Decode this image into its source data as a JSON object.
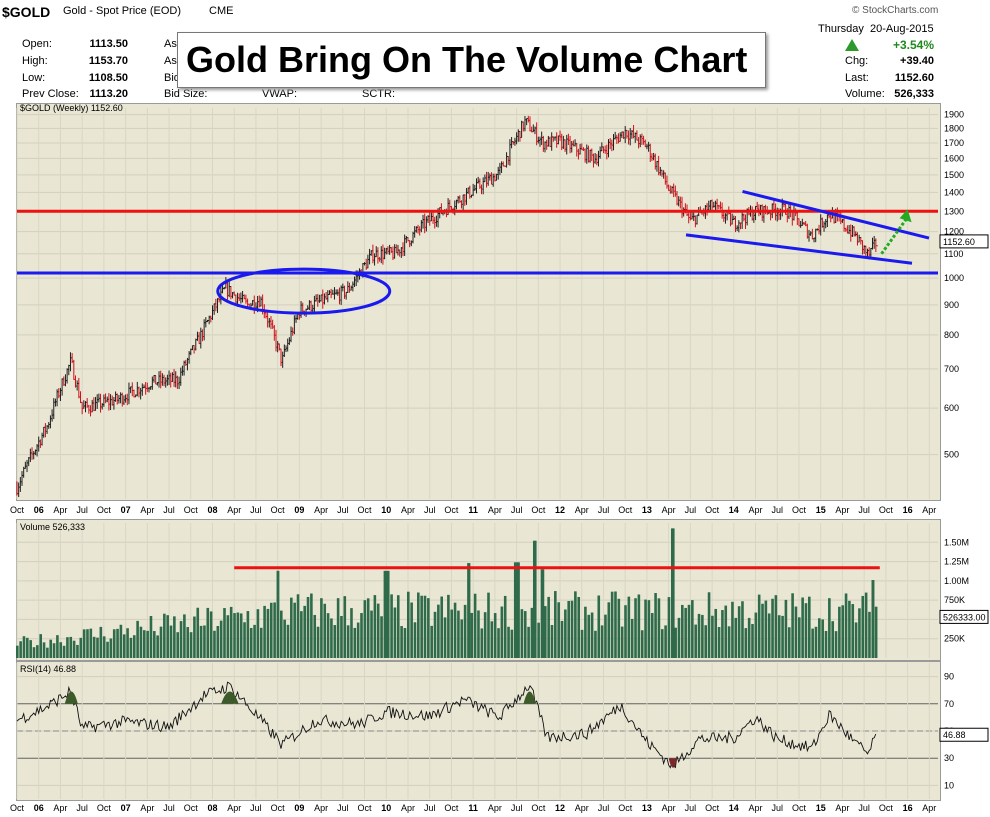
{
  "header": {
    "symbol": "$GOLD",
    "name": "Gold - Spot Price (EOD)",
    "exchange": "CME",
    "copyright": "© StockCharts.com",
    "day": "Thursday",
    "date": "20-Aug-2015",
    "pct_change": "+3.54%",
    "open_label": "Open:",
    "open": "1113.50",
    "high_label": "High:",
    "high": "1153.70",
    "low_label": "Low:",
    "low": "1108.50",
    "prev_label": "Prev Close:",
    "prev": "1113.20",
    "ask_label": "As",
    "bid_label": "Bid",
    "bidsize_label": "Bid Size:",
    "vwap_label": "VWAP:",
    "sctr_label": "SCTR:",
    "chg_label": "Chg:",
    "chg": "+39.40",
    "last_label": "Last:",
    "last": "1152.60",
    "volume_label": "Volume:",
    "volume": "526,333"
  },
  "banner_title": "Gold Bring On The Volume Chart",
  "colors": {
    "panel_bg": "#e9e7d4",
    "up_bar": "#1e1e1e",
    "down_bar": "#d0101a",
    "volume_bar": "#2f6b4a",
    "support_line": "#1a1aee",
    "resistance_line": "#ee1111",
    "arrow": "#22aa22",
    "rsi_fill": "#3d5a2a"
  },
  "chart_data": [
    {
      "type": "candlestick",
      "title": "$GOLD (Weekly) 1152.60",
      "scale": "log",
      "ylim": [
        420,
        1950
      ],
      "y_ticks": [
        500,
        600,
        700,
        800,
        900,
        1000,
        1100,
        1200,
        1300,
        1400,
        1500,
        1600,
        1700,
        1800,
        1900
      ],
      "last_value": "1152.60",
      "x_ticks": [
        "Oct",
        "06",
        "Apr",
        "Jul",
        "Oct",
        "07",
        "Apr",
        "Jul",
        "Oct",
        "08",
        "Apr",
        "Jul",
        "Oct",
        "09",
        "Apr",
        "Jul",
        "Oct",
        "10",
        "Apr",
        "Jul",
        "Oct",
        "11",
        "Apr",
        "Jul",
        "Oct",
        "12",
        "Apr",
        "Jul",
        "Oct",
        "13",
        "Apr",
        "Jul",
        "Oct",
        "14",
        "Apr",
        "Jul",
        "Oct",
        "15",
        "Apr",
        "Jul",
        "Oct",
        "16",
        "Apr"
      ],
      "price_path": [
        {
          "x": 2005.75,
          "y": 440
        },
        {
          "x": 2006.1,
          "y": 560
        },
        {
          "x": 2006.37,
          "y": 720
        },
        {
          "x": 2006.5,
          "y": 600
        },
        {
          "x": 2006.9,
          "y": 620
        },
        {
          "x": 2007.3,
          "y": 665
        },
        {
          "x": 2007.6,
          "y": 670
        },
        {
          "x": 2007.85,
          "y": 790
        },
        {
          "x": 2008.15,
          "y": 960
        },
        {
          "x": 2008.4,
          "y": 900
        },
        {
          "x": 2008.55,
          "y": 920
        },
        {
          "x": 2008.8,
          "y": 720
        },
        {
          "x": 2009.0,
          "y": 880
        },
        {
          "x": 2009.3,
          "y": 920
        },
        {
          "x": 2009.55,
          "y": 950
        },
        {
          "x": 2009.85,
          "y": 1100
        },
        {
          "x": 2010.1,
          "y": 1100
        },
        {
          "x": 2010.45,
          "y": 1240
        },
        {
          "x": 2010.9,
          "y": 1380
        },
        {
          "x": 2011.3,
          "y": 1510
        },
        {
          "x": 2011.6,
          "y": 1850
        },
        {
          "x": 2011.8,
          "y": 1700
        },
        {
          "x": 2012.0,
          "y": 1710
        },
        {
          "x": 2012.4,
          "y": 1600
        },
        {
          "x": 2012.75,
          "y": 1780
        },
        {
          "x": 2013.0,
          "y": 1680
        },
        {
          "x": 2013.25,
          "y": 1420
        },
        {
          "x": 2013.5,
          "y": 1250
        },
        {
          "x": 2013.75,
          "y": 1330
        },
        {
          "x": 2014.0,
          "y": 1240
        },
        {
          "x": 2014.25,
          "y": 1300
        },
        {
          "x": 2014.6,
          "y": 1310
        },
        {
          "x": 2014.9,
          "y": 1180
        },
        {
          "x": 2015.1,
          "y": 1290
        },
        {
          "x": 2015.4,
          "y": 1180
        },
        {
          "x": 2015.55,
          "y": 1090
        },
        {
          "x": 2015.64,
          "y": 1150
        }
      ],
      "lines": [
        {
          "name": "resistance",
          "y": 1300
        },
        {
          "name": "support",
          "y": 1020
        }
      ]
    },
    {
      "type": "bar",
      "title": "Volume 526,333",
      "y_ticks": [
        "250K",
        "500K",
        "750K",
        "1.00M",
        "1.25M",
        "1.50M"
      ],
      "ylim": [
        0,
        1750000
      ],
      "last_value": "526333.00",
      "avg_level": 1170000,
      "spikes": [
        {
          "x": 2008.75,
          "v": 1130000
        },
        {
          "x": 2010.0,
          "v": 1130000
        },
        {
          "x": 2010.95,
          "v": 1230000
        },
        {
          "x": 2011.5,
          "v": 1240000
        },
        {
          "x": 2011.7,
          "v": 1520000
        },
        {
          "x": 2011.8,
          "v": 1150000
        },
        {
          "x": 2013.3,
          "v": 1680000
        },
        {
          "x": 2015.6,
          "v": 1010000
        }
      ]
    },
    {
      "type": "line",
      "title": "RSI(14) 46.88",
      "ylim": [
        0,
        100
      ],
      "y_ticks": [
        10,
        30,
        50,
        70,
        90
      ],
      "bands": [
        30,
        70
      ],
      "last_value": "46.88",
      "rsi_path": [
        {
          "x": 2005.75,
          "y": 58
        },
        {
          "x": 2006.1,
          "y": 68
        },
        {
          "x": 2006.37,
          "y": 79
        },
        {
          "x": 2006.5,
          "y": 52
        },
        {
          "x": 2007.0,
          "y": 57
        },
        {
          "x": 2007.5,
          "y": 53
        },
        {
          "x": 2007.9,
          "y": 76
        },
        {
          "x": 2008.2,
          "y": 83
        },
        {
          "x": 2008.5,
          "y": 62
        },
        {
          "x": 2008.8,
          "y": 40
        },
        {
          "x": 2009.2,
          "y": 58
        },
        {
          "x": 2009.7,
          "y": 55
        },
        {
          "x": 2010.0,
          "y": 64
        },
        {
          "x": 2010.5,
          "y": 61
        },
        {
          "x": 2010.9,
          "y": 73
        },
        {
          "x": 2011.3,
          "y": 60
        },
        {
          "x": 2011.65,
          "y": 84
        },
        {
          "x": 2011.85,
          "y": 45
        },
        {
          "x": 2012.3,
          "y": 48
        },
        {
          "x": 2012.7,
          "y": 69
        },
        {
          "x": 2013.0,
          "y": 42
        },
        {
          "x": 2013.3,
          "y": 24
        },
        {
          "x": 2013.6,
          "y": 44
        },
        {
          "x": 2014.0,
          "y": 45
        },
        {
          "x": 2014.25,
          "y": 60
        },
        {
          "x": 2014.5,
          "y": 44
        },
        {
          "x": 2014.9,
          "y": 37
        },
        {
          "x": 2015.1,
          "y": 62
        },
        {
          "x": 2015.4,
          "y": 41
        },
        {
          "x": 2015.55,
          "y": 33
        },
        {
          "x": 2015.64,
          "y": 47
        }
      ]
    }
  ]
}
